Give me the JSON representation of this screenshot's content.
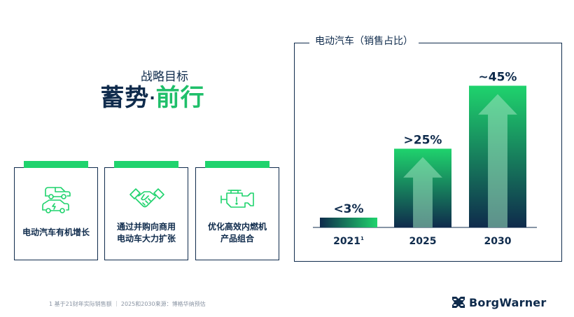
{
  "headline": {
    "subtitle": "战略目标",
    "main_part1": "蓄势",
    "main_dot": "·",
    "main_part2": "前行"
  },
  "cards": [
    {
      "label": "电动汽车有机增长",
      "icon": "ev-cars-icon"
    },
    {
      "label": "通过并购向商用\n电动车大力扩张",
      "icon": "handshake-icon"
    },
    {
      "label": "优化高效内燃机\n产品组合",
      "icon": "engine-icon"
    }
  ],
  "chart_data": {
    "type": "bar",
    "title": "电动汽车（销售占比）",
    "categories": [
      "2021",
      "2025",
      "2030"
    ],
    "category_superscripts": [
      "1",
      "",
      ""
    ],
    "values": [
      3,
      25,
      45
    ],
    "data_labels": [
      "<3%",
      ">25%",
      "~45%"
    ],
    "ylim": [
      0,
      50
    ],
    "grid": false,
    "colors": {
      "bar_top": "#1fd36d",
      "bar_bottom": "#0f2b4c",
      "arrow": "#9fe3c0"
    }
  },
  "footnote": "1 基于21财年实际销售额 ｜ 2025和2030来源：博格华纳预估",
  "logo": {
    "text": "BorgWarner",
    "icon": "borgwarner-logo-icon"
  },
  "colors": {
    "navy": "#0f2b4c",
    "green": "#1fd36d"
  }
}
